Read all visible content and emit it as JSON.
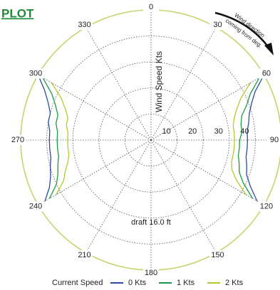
{
  "chart_data": {
    "type": "polar",
    "title": "PLOT",
    "radial_label": "Wind Speed Kts",
    "annotation": "draft 16.0 ft",
    "arrow_annotation": [
      "Wind direction",
      "coming from deg."
    ],
    "legend_title": "Current Speed",
    "rlim": [
      0,
      50
    ],
    "rticks": [
      10,
      20,
      30,
      40
    ],
    "theta_ticks": [
      0,
      30,
      60,
      90,
      120,
      150,
      180,
      210,
      240,
      270,
      300,
      330
    ],
    "theta": [
      60,
      65,
      70,
      75,
      80,
      85,
      90,
      95,
      100,
      105,
      110,
      115,
      120,
      180,
      240,
      245,
      250,
      255,
      260,
      265,
      270,
      275,
      280,
      285,
      290,
      295,
      300
    ],
    "series": [
      {
        "name": "0 Kts",
        "color": "#2b4da0",
        "values": [
          50,
          44,
          41,
          39,
          38,
          37,
          37,
          37,
          37,
          38,
          39,
          42,
          47,
          null,
          47,
          43,
          41,
          40,
          39,
          39,
          39,
          39,
          40,
          40,
          42,
          45,
          50
        ]
      },
      {
        "name": "1 Kts",
        "color": "#1a9a48",
        "values": [
          48,
          42,
          39,
          36,
          35,
          35,
          34,
          34,
          34,
          35,
          36,
          39,
          45,
          null,
          45,
          40,
          38,
          37,
          36,
          36,
          36,
          36,
          37,
          37,
          39,
          42,
          48
        ]
      },
      {
        "name": "2 Kts",
        "color": "#b5c92c",
        "values": [
          44,
          38,
          35,
          33,
          32,
          32,
          32,
          32,
          32,
          32,
          33,
          36,
          42,
          null,
          42,
          37,
          35,
          33,
          32,
          32,
          32,
          32,
          33,
          33,
          35,
          38,
          44
        ]
      }
    ]
  }
}
